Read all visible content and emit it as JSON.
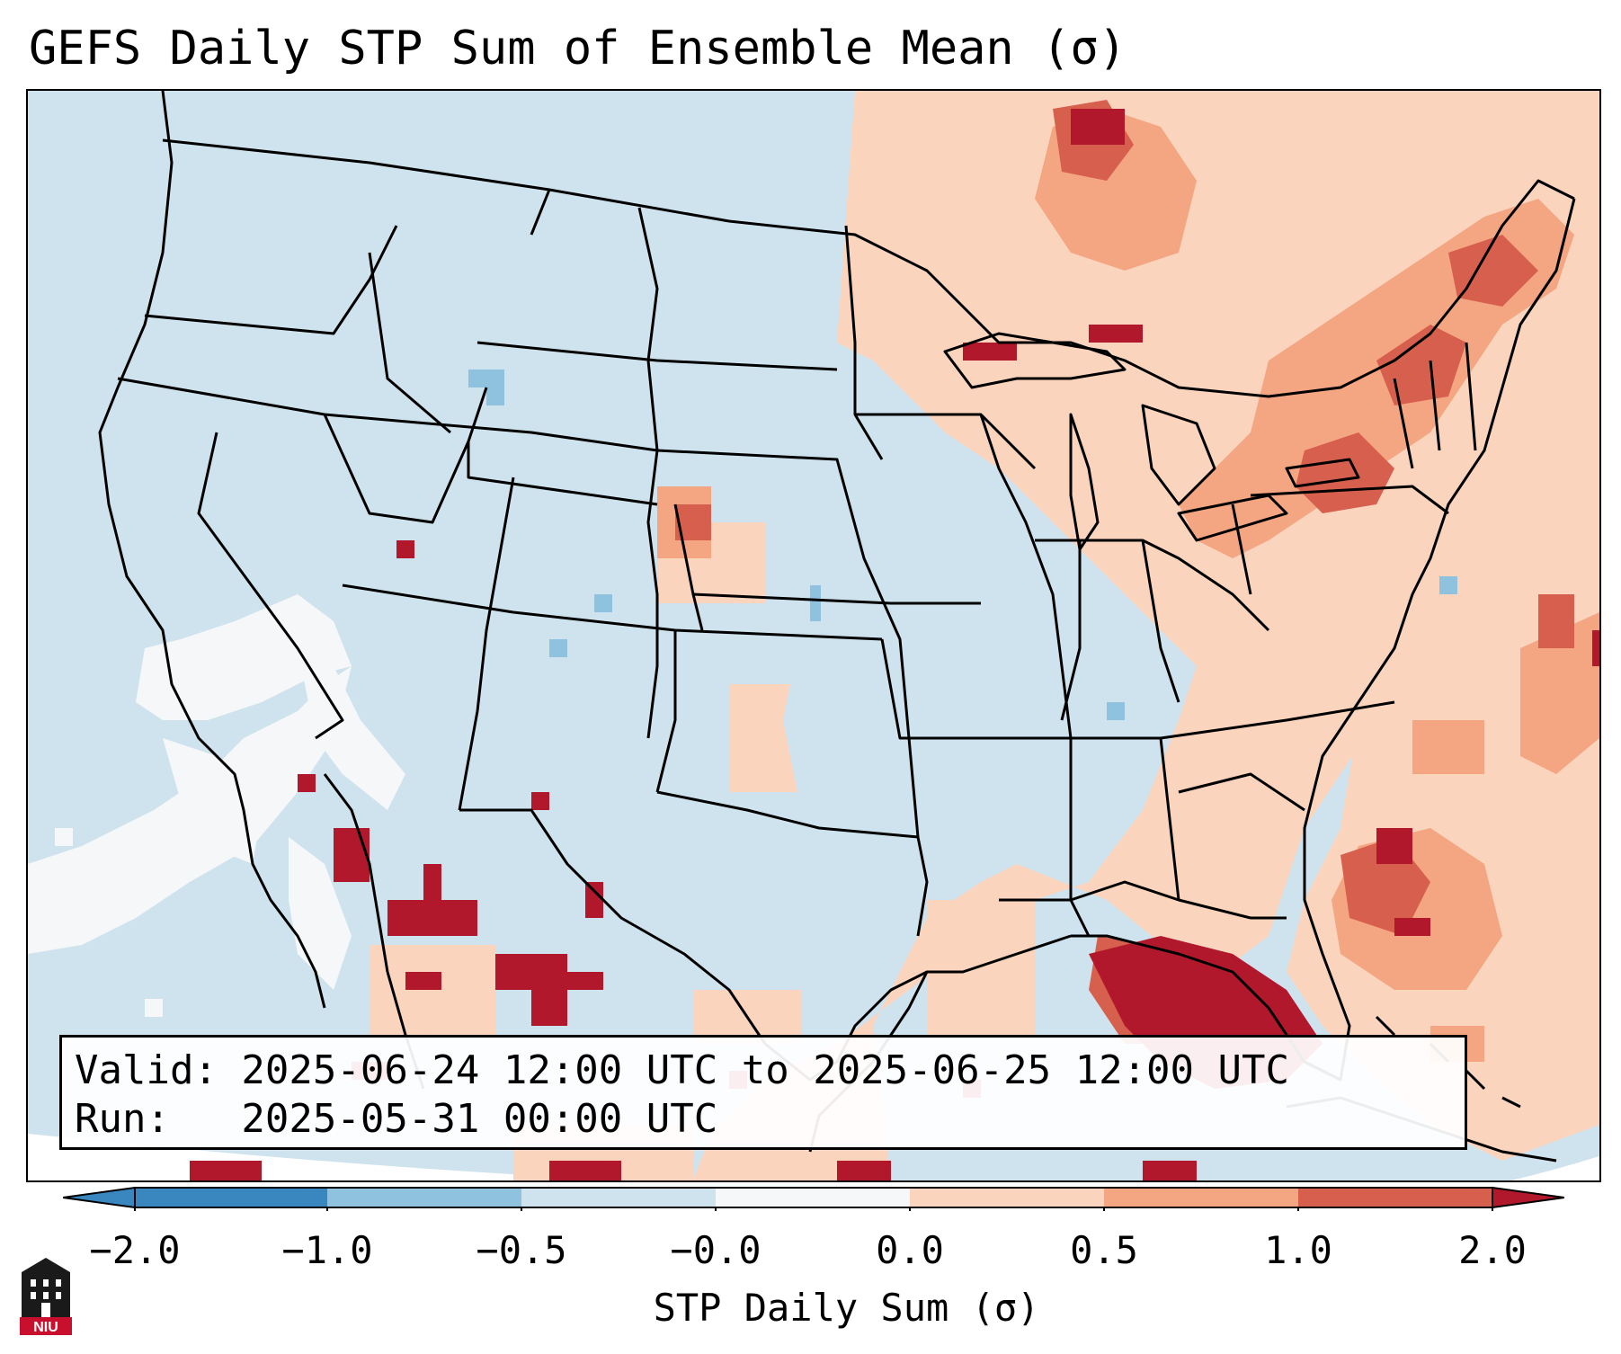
{
  "title": "GEFS Daily STP Sum of Ensemble Mean (σ)",
  "valid_line": "Valid: 2025-06-24 12:00 UTC to 2025-06-25 12:00 UTC",
  "run_line": "Run:   2025-05-31 00:00 UTC",
  "colorbar": {
    "label": "STP Daily Sum (σ)",
    "ticks": [
      "−2.0",
      "−1.0",
      "−0.5",
      "−0.0",
      "0.0",
      "0.5",
      "1.0",
      "2.0"
    ],
    "colors": [
      "#3a86bf",
      "#8fc2df",
      "#cfe3ef",
      "#f6f7f8",
      "#fbd4be",
      "#f4a582",
      "#d6604d",
      "#b2182b"
    ]
  },
  "logo_text": "NIU",
  "colors": {
    "ocean_land_neutral": "#cfe3ef",
    "light_positive": "#fbd4be",
    "moderate_positive": "#f4a582",
    "strong_positive": "#d6604d",
    "extreme_positive": "#b2182b",
    "light_negative": "#8fc2df"
  }
}
